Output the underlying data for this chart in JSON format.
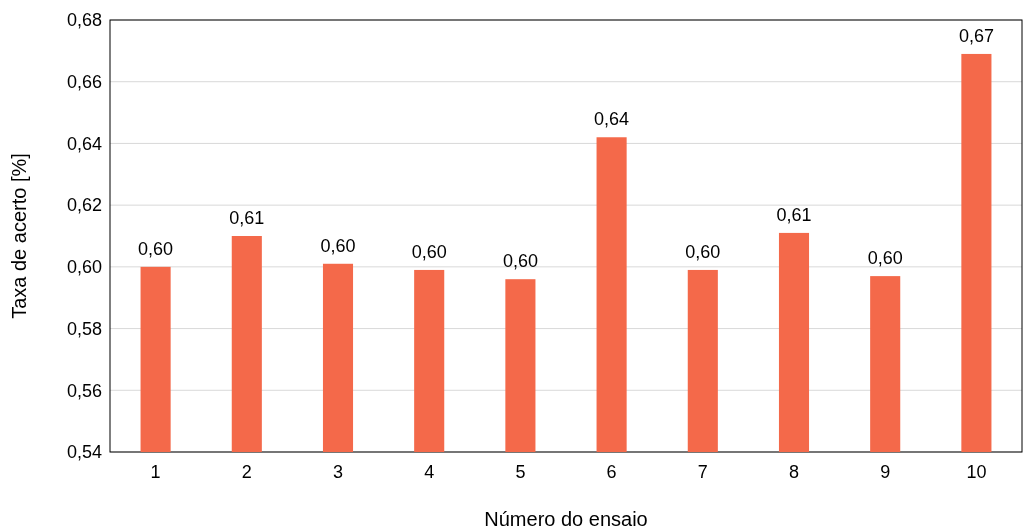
{
  "chart_data": {
    "type": "bar",
    "xlabel": "Número do ensaio",
    "ylabel": "Taxa de acerto [%]",
    "categories": [
      "1",
      "2",
      "3",
      "4",
      "5",
      "6",
      "7",
      "8",
      "9",
      "10"
    ],
    "values": [
      0.6,
      0.61,
      0.601,
      0.599,
      0.596,
      0.642,
      0.599,
      0.611,
      0.597,
      0.669
    ],
    "value_labels": [
      "0,60",
      "0,61",
      "0,60",
      "0,60",
      "0,60",
      "0,64",
      "0,60",
      "0,61",
      "0,60",
      "0,67"
    ],
    "color": "#f4694a",
    "ylim": [
      0.54,
      0.68
    ],
    "yticks": [
      {
        "value": 0.54,
        "label": "0,54"
      },
      {
        "value": 0.56,
        "label": "0,56"
      },
      {
        "value": 0.58,
        "label": "0,58"
      },
      {
        "value": 0.6,
        "label": "0,60"
      },
      {
        "value": 0.62,
        "label": "0,62"
      },
      {
        "value": 0.64,
        "label": "0,64"
      },
      {
        "value": 0.66,
        "label": "0,66"
      },
      {
        "value": 0.68,
        "label": "0,68"
      }
    ],
    "grid": "y"
  }
}
